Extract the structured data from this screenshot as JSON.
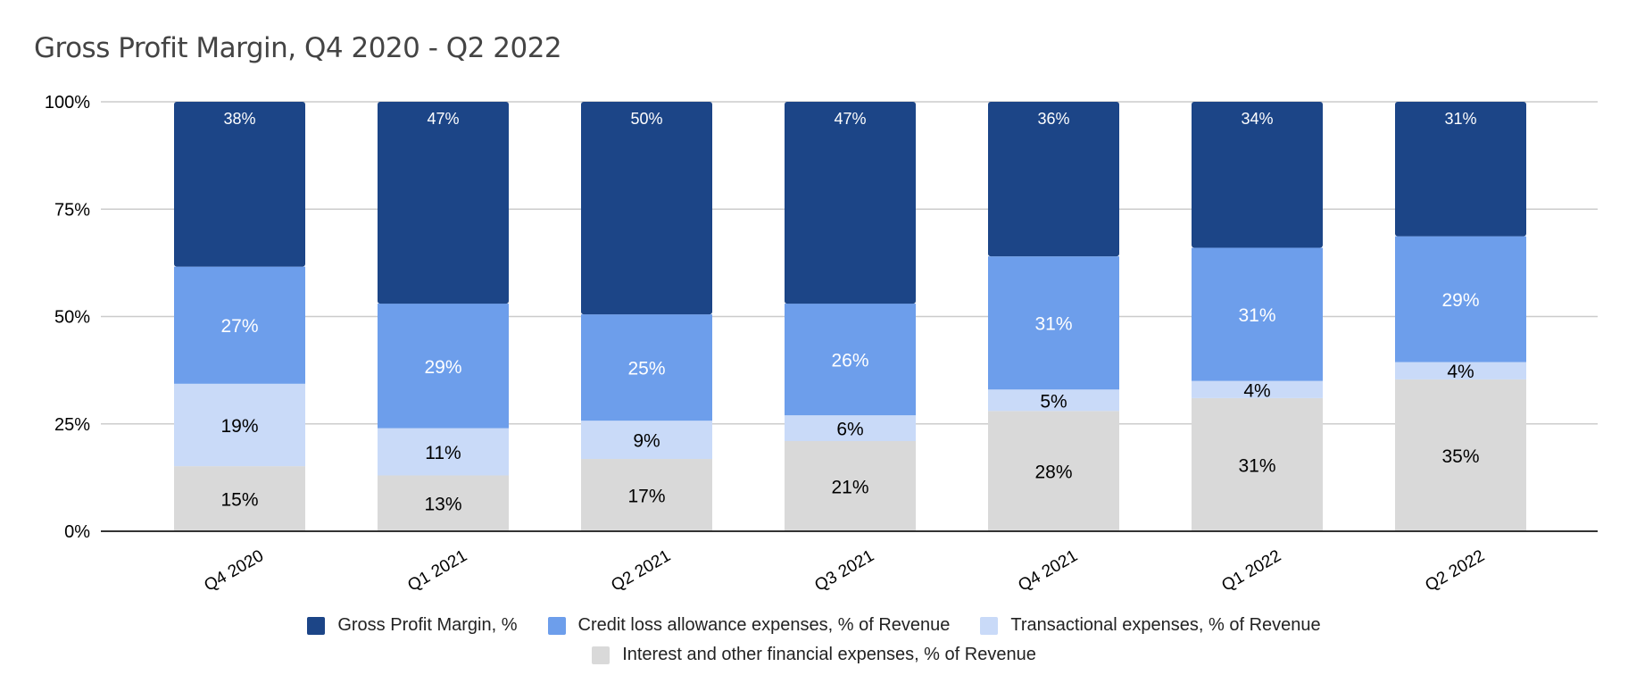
{
  "chart_data": {
    "type": "bar",
    "stacked": "percent",
    "title": "Gross Profit Margin, Q4 2020 - Q2 2022",
    "xlabel": "",
    "ylabel": "",
    "ylim": [
      0,
      100
    ],
    "yticks": [
      "0%",
      "25%",
      "50%",
      "75%",
      "100%"
    ],
    "grid": true,
    "legend_position": "bottom",
    "categories": [
      "Q4 2020",
      "Q1 2021",
      "Q2 2021",
      "Q3 2021",
      "Q4 2021",
      "Q1 2022",
      "Q2 2022"
    ],
    "series": [
      {
        "name": "Interest and other financial expenses, % of Revenue",
        "color": "#d9d9d9",
        "values": [
          15,
          13,
          17,
          21,
          28,
          31,
          35
        ]
      },
      {
        "name": "Transactional expenses, % of Revenue",
        "color": "#c9daf8",
        "values": [
          19,
          11,
          9,
          6,
          5,
          4,
          4
        ]
      },
      {
        "name": "Credit loss allowance expenses, % of Revenue",
        "color": "#6d9eeb",
        "values": [
          27,
          29,
          25,
          26,
          31,
          31,
          29
        ]
      },
      {
        "name": "Gross Profit Margin, %",
        "color": "#1c4587",
        "values": [
          38,
          47,
          50,
          47,
          36,
          34,
          31
        ]
      }
    ]
  }
}
